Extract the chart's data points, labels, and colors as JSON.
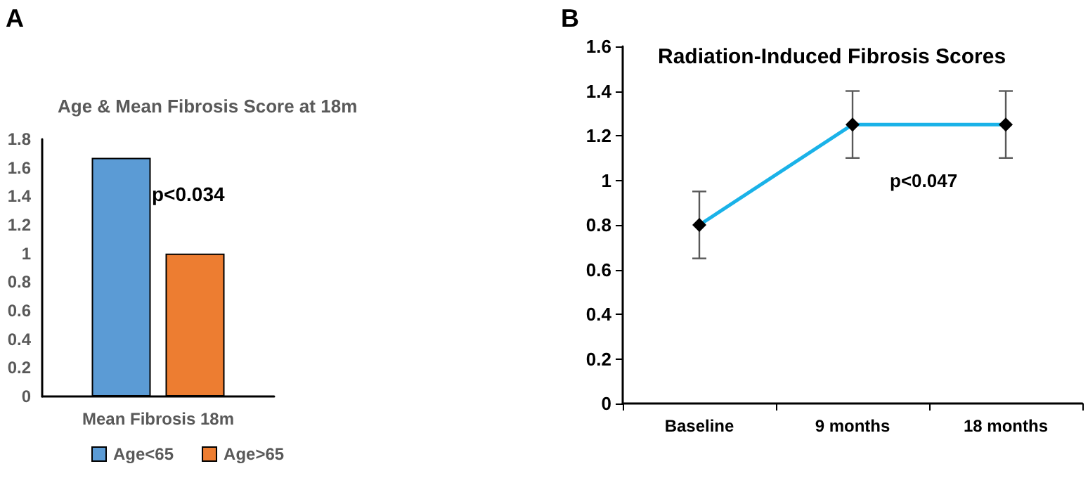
{
  "chart_data": [
    {
      "type": "bar",
      "title": "Age & Mean Fibrosis Score at 18m",
      "categories": [
        "Mean Fibrosis 18m"
      ],
      "series": [
        {
          "name": "Age<65",
          "color": "#5b9bd5",
          "values": [
            1.67
          ]
        },
        {
          "name": "Age>65",
          "color": "#ed7d31",
          "values": [
            1.0
          ]
        }
      ],
      "ylim": [
        0,
        1.8
      ],
      "yticks": [
        0,
        0.2,
        0.4,
        0.6,
        0.8,
        1,
        1.2,
        1.4,
        1.6,
        1.8
      ],
      "grid": false,
      "legend": "bottom",
      "annotations": [
        "A",
        "p<0.034"
      ]
    },
    {
      "type": "line",
      "title": "Radiation-Induced Fibrosis Scores",
      "categories": [
        "Baseline",
        "9 months",
        "18 months"
      ],
      "series": [
        {
          "color": "#1ab2e8",
          "values": [
            0.8,
            1.25,
            1.25
          ],
          "errors": [
            0.15,
            0.15,
            0.15
          ]
        }
      ],
      "ylim": [
        0,
        1.6
      ],
      "yticks": [
        0,
        0.2,
        0.4,
        0.6,
        0.8,
        1,
        1.2,
        1.4,
        1.6
      ],
      "grid": false,
      "legend": false,
      "marker": "diamond",
      "line_style": "solid",
      "annotations": [
        "B",
        "p<0.047"
      ]
    }
  ]
}
